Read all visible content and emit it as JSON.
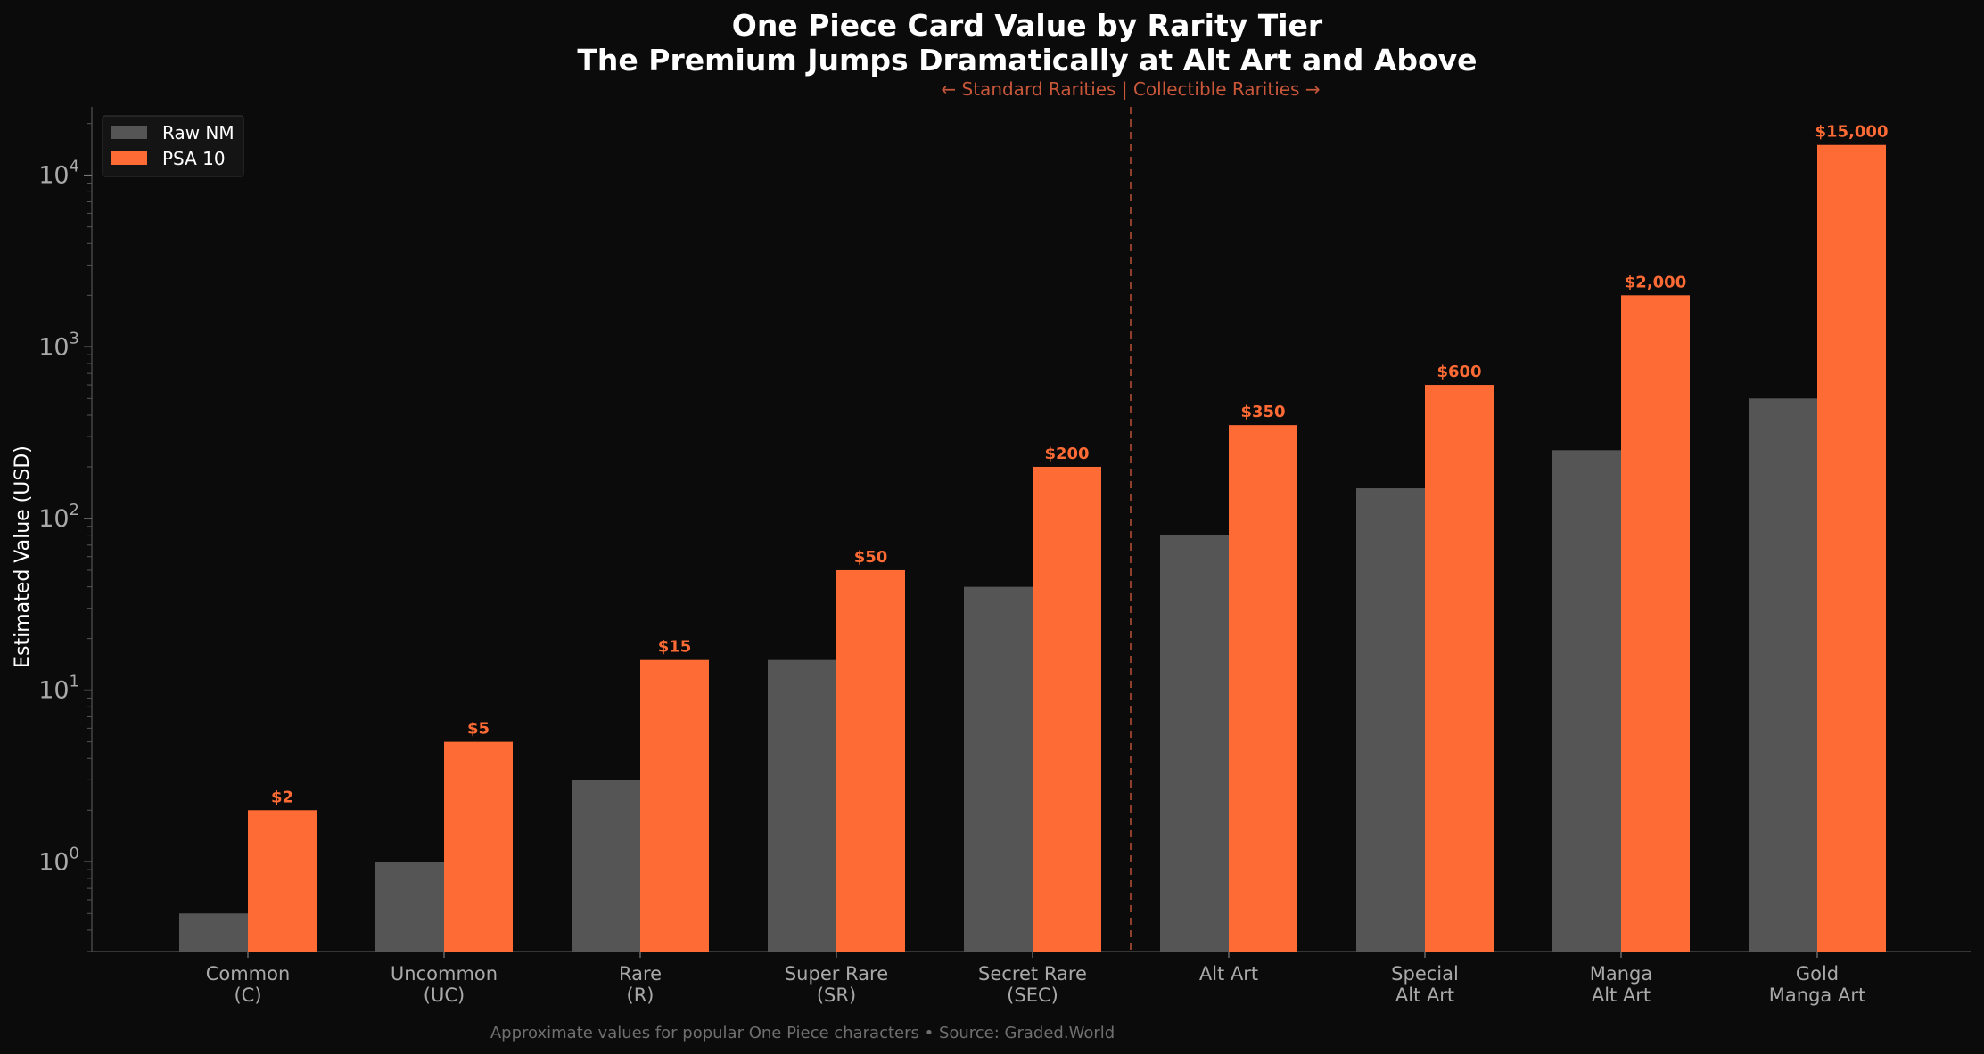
{
  "chart_data": {
    "type": "bar",
    "title": "One Piece Card Value by Rarity Tier",
    "subtitle": "The Premium Jumps Dramatically at Alt Art and Above",
    "ylabel": "Estimated Value (USD)",
    "xlabel": "",
    "yscale": "log",
    "ylim": [
      0.3,
      25000
    ],
    "categories": [
      [
        "Common",
        "(C)"
      ],
      [
        "Uncommon",
        "(UC)"
      ],
      [
        "Rare",
        "(R)"
      ],
      [
        "Super Rare",
        "(SR)"
      ],
      [
        "Secret Rare",
        "(SEC)"
      ],
      [
        "Alt Art"
      ],
      [
        "Special",
        "Alt Art"
      ],
      [
        "Manga",
        "Alt Art"
      ],
      [
        "Gold",
        "Manga Art"
      ]
    ],
    "series": [
      {
        "name": "Raw NM",
        "color": "#555555",
        "values": [
          0.5,
          1,
          3,
          15,
          40,
          80,
          150,
          250,
          500
        ]
      },
      {
        "name": "PSA 10",
        "color": "#ff6b35",
        "values": [
          2,
          5,
          15,
          50,
          200,
          350,
          600,
          2000,
          15000
        ]
      }
    ],
    "data_labels": [
      "$2",
      "$5",
      "$15",
      "$50",
      "$200",
      "$350",
      "$600",
      "$2,000",
      "$15,000"
    ],
    "divider": {
      "after_category_index": 4,
      "label": "← Standard Rarities | Collectible Rarities →",
      "color": "#c8573a"
    },
    "y_ticks": [
      {
        "base": "10",
        "exp": "0"
      },
      {
        "base": "10",
        "exp": "1"
      },
      {
        "base": "10",
        "exp": "2"
      },
      {
        "base": "10",
        "exp": "3"
      },
      {
        "base": "10",
        "exp": "4"
      }
    ],
    "legend": {
      "position": "top-left"
    },
    "grid": false,
    "footer": "Approximate values for popular One Piece characters  •  Source: Graded.World"
  }
}
